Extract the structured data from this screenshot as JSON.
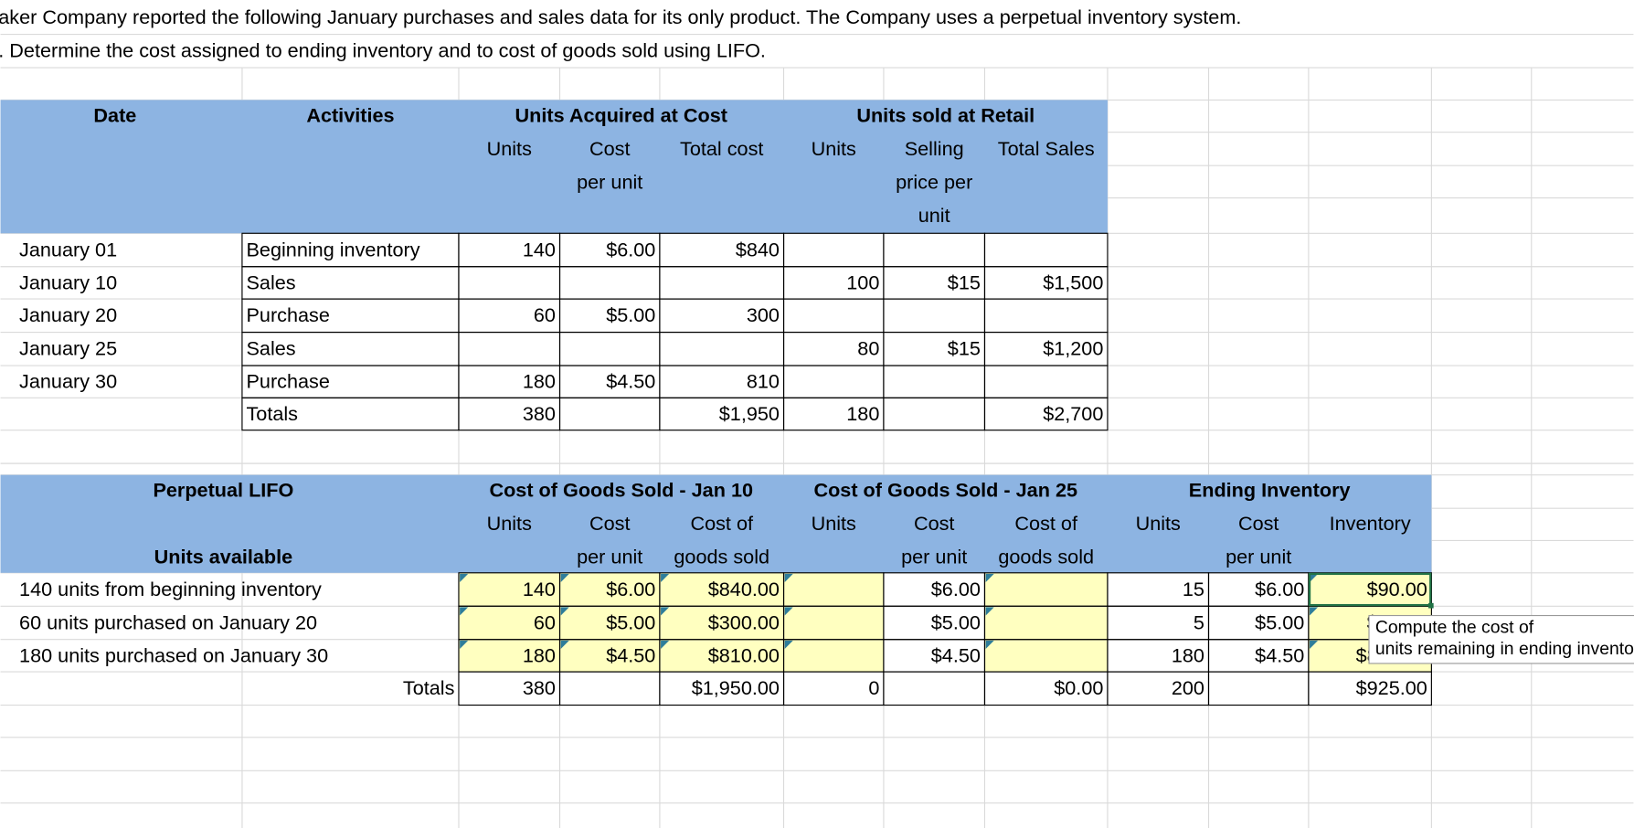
{
  "intro": [
    "aker Company reported the following January purchases and sales data for its only product. The Company uses a perpetual inventory system.",
    ". Determine the cost assigned to ending inventory and to cost of goods sold using LIFO."
  ],
  "table1": {
    "date_header": "Date",
    "activities_header": "Activities",
    "group_headers": [
      "Units Acquired at Cost",
      "Units sold at Retail"
    ],
    "column_headers": [
      [
        "Units"
      ],
      [
        "Cost",
        "per unit"
      ],
      [
        "Total cost"
      ],
      [
        "Units"
      ],
      [
        "Selling",
        "price per",
        "unit"
      ],
      [
        "Total Sales"
      ]
    ],
    "rows": [
      [
        "January 01",
        "Beginning inventory",
        "140",
        "$6.00",
        "$840",
        null,
        null,
        null
      ],
      [
        "January 10",
        "Sales",
        null,
        null,
        null,
        "100",
        "$15",
        "$1,500"
      ],
      [
        "January 20",
        "Purchase",
        "60",
        "$5.00",
        "300",
        null,
        null,
        null
      ],
      [
        "January 25",
        "Sales",
        null,
        null,
        null,
        "80",
        "$15",
        "$1,200"
      ],
      [
        "January 30",
        "Purchase",
        "180",
        "$4.50",
        "810",
        null,
        null,
        null
      ],
      [
        null,
        "Totals",
        "380",
        null,
        "$1,950",
        "180",
        null,
        "$2,700"
      ]
    ]
  },
  "table2": {
    "title": "Perpetual LIFO",
    "subtitle": "Units available",
    "group_headers": [
      "Cost of Goods Sold - Jan 10",
      "Cost of Goods Sold - Jan 25",
      "Ending Inventory"
    ],
    "column_headers": [
      [
        "Units"
      ],
      [
        "Cost",
        "per unit"
      ],
      [
        "Cost of",
        "goods sold"
      ],
      [
        "Units"
      ],
      [
        "Cost",
        "per unit"
      ],
      [
        "Cost of",
        "goods sold"
      ],
      [
        "Units"
      ],
      [
        "Cost",
        "per unit"
      ],
      [
        "Inventory"
      ]
    ],
    "rows": [
      [
        "140 units from beginning inventory",
        "140",
        "$6.00",
        "$840.00",
        null,
        "$6.00",
        null,
        "15",
        "$6.00",
        "$90.00"
      ],
      [
        "60 units purchased on January 20",
        "60",
        "$5.00",
        "$300.00",
        null,
        "$5.00",
        null,
        "5",
        "$5.00",
        "$25.00"
      ],
      [
        "180 units purchased on January 30",
        "180",
        "$4.50",
        "$810.00",
        null,
        "$4.50",
        null,
        "180",
        "$4.50",
        "$810.00"
      ],
      [
        "Totals",
        "380",
        null,
        "$1,950.00",
        "0",
        null,
        "$0.00",
        "200",
        null,
        "$925.00"
      ]
    ]
  },
  "tooltip": [
    "Compute the cost of",
    "units remaining in ending inventory"
  ]
}
